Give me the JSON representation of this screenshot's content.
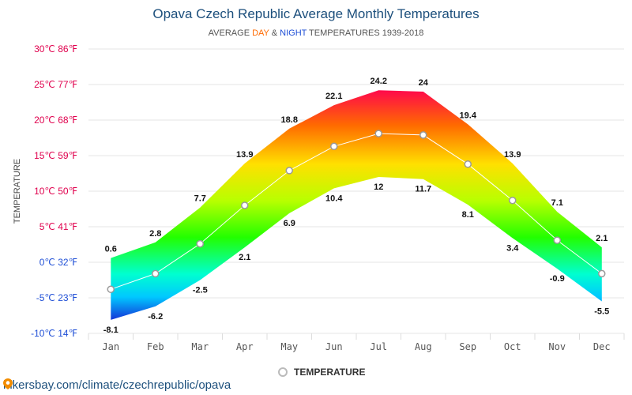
{
  "header": {
    "title": "Opava Czech Republic Average Monthly Temperatures",
    "subtitle_pre": "AVERAGE ",
    "subtitle_day": "DAY",
    "subtitle_mid": " & ",
    "subtitle_night": "NIGHT",
    "subtitle_post": " TEMPERATURES 1939-2018"
  },
  "legend": {
    "label": "TEMPERATURE"
  },
  "footer": {
    "text": "hikersbay.com/climate/czechrepublic/opava",
    "icon": "map-pin-icon"
  },
  "colors": {
    "day_accent": "#ff6a00",
    "night_accent": "#1f4fd6",
    "title": "#1c4f7c",
    "mean_line": "#ffffff",
    "ytick_hot": "#e0004d",
    "ytick_cold": "#1f4fd6"
  },
  "chart_data": {
    "type": "area",
    "title": "Opava Czech Republic Average Monthly Temperatures",
    "ylabel": "TEMPERATURE",
    "categories": [
      "Jan",
      "Feb",
      "Mar",
      "Apr",
      "May",
      "Jun",
      "Jul",
      "Aug",
      "Sep",
      "Oct",
      "Nov",
      "Dec"
    ],
    "y_ticks": [
      "-10℃ 14℉",
      "-5℃ 23℉",
      "0℃ 32℉",
      "5℃ 41℉",
      "10℃ 50℉",
      "15℃ 59℉",
      "20℃ 68℉",
      "25℃ 77℉",
      "30℃ 86℉"
    ],
    "ylim": [
      -10,
      30
    ],
    "grid": true,
    "legend_position": "bottom-center",
    "series": [
      {
        "role": "day",
        "values": [
          0.6,
          2.8,
          7.7,
          13.9,
          18.8,
          22.1,
          24.2,
          24,
          19.4,
          13.9,
          7.1,
          2.1
        ]
      },
      {
        "role": "night",
        "values": [
          -8.1,
          -6.2,
          -2.5,
          2.1,
          6.9,
          10.4,
          12,
          11.7,
          8.1,
          3.4,
          -0.9,
          -5.5
        ]
      },
      {
        "name": "TEMPERATURE",
        "role": "mean",
        "values": [
          -3.8,
          -1.6,
          2.6,
          8,
          12.9,
          16.3,
          18.1,
          17.9,
          13.8,
          8.7,
          3.1,
          -1.6
        ]
      }
    ]
  }
}
